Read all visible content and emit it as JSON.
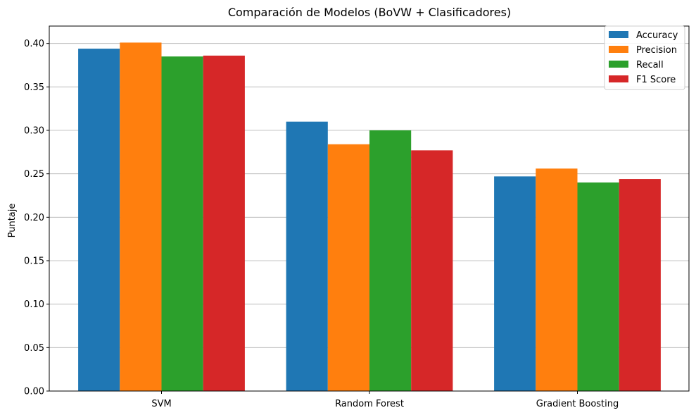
{
  "chart_data": {
    "type": "bar",
    "title": "Comparación de Modelos (BoVW + Clasificadores)",
    "xlabel": "",
    "ylabel": "Puntaje",
    "categories": [
      "SVM",
      "Random Forest",
      "Gradient Boosting"
    ],
    "series": [
      {
        "name": "Accuracy",
        "color": "#1f77b4",
        "values": [
          0.394,
          0.31,
          0.247
        ]
      },
      {
        "name": "Precision",
        "color": "#ff7f0e",
        "values": [
          0.401,
          0.284,
          0.256
        ]
      },
      {
        "name": "Recall",
        "color": "#2ca02c",
        "values": [
          0.385,
          0.3,
          0.24
        ]
      },
      {
        "name": "F1 Score",
        "color": "#d62728",
        "values": [
          0.386,
          0.277,
          0.244
        ]
      }
    ],
    "ylim": [
      0,
      0.42
    ],
    "yticks": [
      "0.00",
      "0.05",
      "0.10",
      "0.15",
      "0.20",
      "0.25",
      "0.30",
      "0.35",
      "0.40"
    ],
    "grid": "y-axis",
    "legend_position": "top-right"
  }
}
